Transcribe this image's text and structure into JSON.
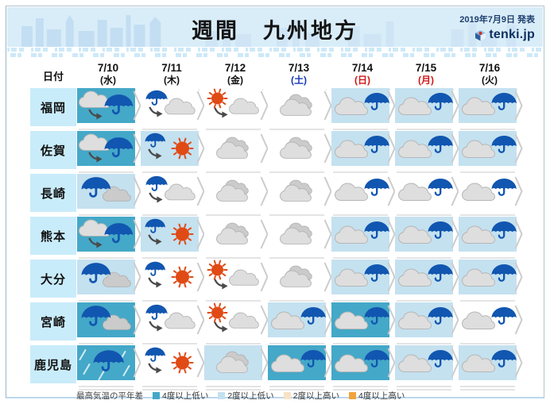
{
  "header": {
    "title": "週間　九州地方",
    "published": "2019年7月9日 発表",
    "logo_text": "tenki.jp"
  },
  "table": {
    "date_label": "日付"
  },
  "colors": {
    "banner_bg": "#d9edf9",
    "skyline": "#c3def2",
    "label_bg": "#c9ecfa",
    "umbrella_blue": "#1156b0",
    "sun_orange": "#e04a15",
    "cold4": "#44a8c8",
    "cold2": "#c4e1f0",
    "normal": "#ffffff",
    "saturday_blue": "#1638b8",
    "holiday_red": "#d21616"
  },
  "chart_data": {
    "type": "table",
    "title": "週間　九州地方",
    "published": "2019年7月9日 発表",
    "columns": [
      {
        "date": "7/10",
        "dow": "(水)",
        "dow_type": "weekday"
      },
      {
        "date": "7/11",
        "dow": "(木)",
        "dow_type": "weekday"
      },
      {
        "date": "7/12",
        "dow": "(金)",
        "dow_type": "weekday"
      },
      {
        "date": "7/13",
        "dow": "(土)",
        "dow_type": "saturday"
      },
      {
        "date": "7/14",
        "dow": "(日)",
        "dow_type": "sunday"
      },
      {
        "date": "7/15",
        "dow": "(月)",
        "dow_type": "holiday"
      },
      {
        "date": "7/16",
        "dow": "(火)",
        "dow_type": "weekday"
      }
    ],
    "rows": [
      {
        "prefecture": "福岡",
        "cells": [
          {
            "icon": "cloud-then-rain",
            "temp": "cold4"
          },
          {
            "icon": "rain-then-cloud",
            "temp": "normal"
          },
          {
            "icon": "sun-then-cloud",
            "temp": "normal"
          },
          {
            "icon": "cloudy",
            "temp": "normal"
          },
          {
            "icon": "cloud-rain",
            "temp": "cold2"
          },
          {
            "icon": "cloud-rain",
            "temp": "cold2"
          },
          {
            "icon": "cloud-rain",
            "temp": "cold2"
          }
        ]
      },
      {
        "prefecture": "佐賀",
        "cells": [
          {
            "icon": "cloud-then-rain",
            "temp": "cold4"
          },
          {
            "icon": "rain-then-sun",
            "temp": "cold2"
          },
          {
            "icon": "cloudy",
            "temp": "normal"
          },
          {
            "icon": "cloudy",
            "temp": "normal"
          },
          {
            "icon": "cloud-rain",
            "temp": "cold2"
          },
          {
            "icon": "cloud-rain",
            "temp": "cold2"
          },
          {
            "icon": "cloud-rain",
            "temp": "cold2"
          }
        ]
      },
      {
        "prefecture": "長崎",
        "cells": [
          {
            "icon": "rain-cloud",
            "temp": "cold2"
          },
          {
            "icon": "rain-then-cloud",
            "temp": "normal"
          },
          {
            "icon": "cloudy",
            "temp": "normal"
          },
          {
            "icon": "cloudy",
            "temp": "normal"
          },
          {
            "icon": "cloud-rain",
            "temp": "normal"
          },
          {
            "icon": "cloud-rain",
            "temp": "normal"
          },
          {
            "icon": "cloud-rain",
            "temp": "normal"
          }
        ]
      },
      {
        "prefecture": "熊本",
        "cells": [
          {
            "icon": "cloud-then-rain",
            "temp": "cold4"
          },
          {
            "icon": "rain-then-sun",
            "temp": "cold2"
          },
          {
            "icon": "cloudy",
            "temp": "normal"
          },
          {
            "icon": "cloudy",
            "temp": "normal"
          },
          {
            "icon": "cloud-rain",
            "temp": "cold2"
          },
          {
            "icon": "cloud-rain",
            "temp": "cold2"
          },
          {
            "icon": "cloud-rain",
            "temp": "cold2"
          }
        ]
      },
      {
        "prefecture": "大分",
        "cells": [
          {
            "icon": "rain-cloud",
            "temp": "cold2"
          },
          {
            "icon": "rain-then-sun",
            "temp": "normal"
          },
          {
            "icon": "sun-then-cloud",
            "temp": "normal"
          },
          {
            "icon": "cloudy",
            "temp": "normal"
          },
          {
            "icon": "cloud-rain",
            "temp": "cold2"
          },
          {
            "icon": "cloud-rain",
            "temp": "cold2"
          },
          {
            "icon": "cloud-rain",
            "temp": "cold2"
          }
        ]
      },
      {
        "prefecture": "宮崎",
        "cells": [
          {
            "icon": "rain-cloud",
            "temp": "cold4"
          },
          {
            "icon": "rain-then-cloud",
            "temp": "normal"
          },
          {
            "icon": "sun-then-cloud",
            "temp": "normal"
          },
          {
            "icon": "cloud-rain",
            "temp": "cold2"
          },
          {
            "icon": "cloud-rain",
            "temp": "cold4"
          },
          {
            "icon": "cloud-rain",
            "temp": "cold2"
          },
          {
            "icon": "cloud-rain",
            "temp": "normal"
          }
        ]
      },
      {
        "prefecture": "鹿児島",
        "cells": [
          {
            "icon": "heavy-rain",
            "temp": "cold4"
          },
          {
            "icon": "rain-then-sun",
            "temp": "normal"
          },
          {
            "icon": "cloudy",
            "temp": "cold2"
          },
          {
            "icon": "cloud-rain",
            "temp": "cold4"
          },
          {
            "icon": "cloud-rain",
            "temp": "cold4"
          },
          {
            "icon": "cloud-rain",
            "temp": "cold2"
          },
          {
            "icon": "cloud-rain",
            "temp": "cold2"
          }
        ]
      }
    ],
    "temp_legend": {
      "title": "最高気温の平年差",
      "items": [
        {
          "key": "cold4",
          "label": "4度以上低い",
          "color": "#44a8c8"
        },
        {
          "key": "cold2",
          "label": "2度以上低い",
          "color": "#c4e1f0"
        },
        {
          "key": "warm2",
          "label": "2度以上高い",
          "color": "#f7e2c6"
        },
        {
          "key": "warm4",
          "label": "4度以上高い",
          "color": "#f0a43e"
        }
      ]
    }
  }
}
